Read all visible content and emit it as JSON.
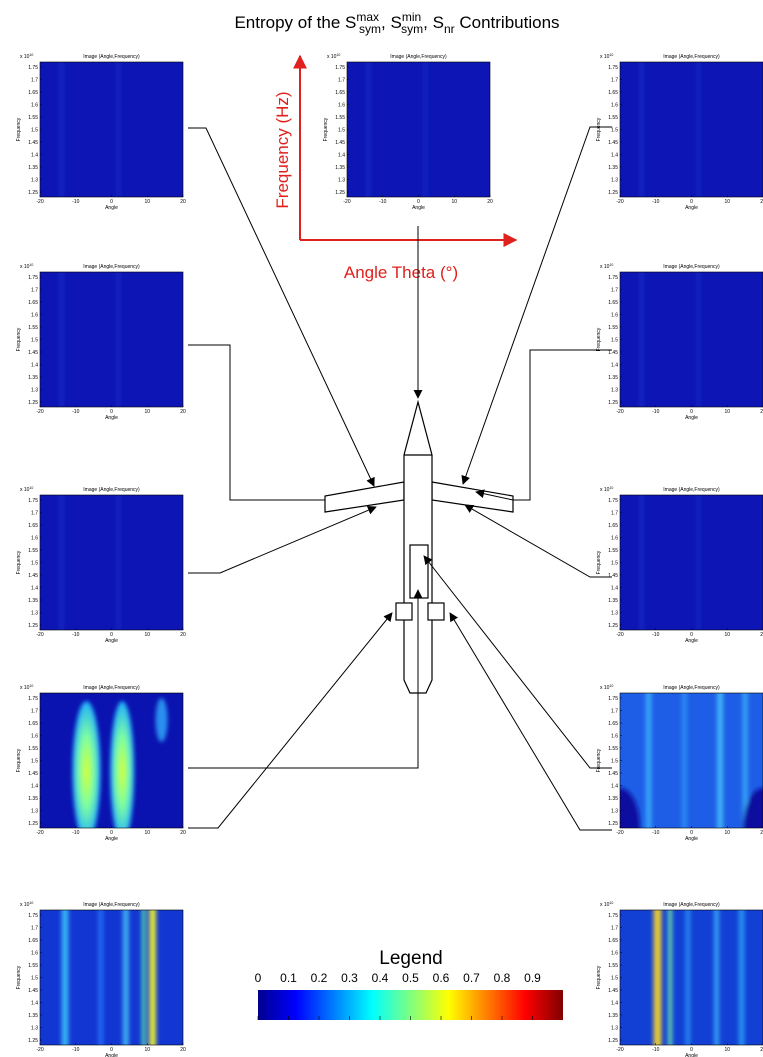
{
  "title": [
    "Entropy of the S",
    "max",
    "sym",
    ", S",
    "min",
    "sym",
    ", S",
    "nr",
    " Contributions"
  ],
  "panel_axes": {
    "title": "Image (Angle,Frequency)",
    "xlabel": "Angle",
    "ylabel": "Frequency",
    "multiplier": "x 10",
    "exponent": "10",
    "xlim": [
      -20,
      20
    ],
    "xticks": [
      -20,
      -10,
      0,
      10,
      20
    ],
    "ylim": [
      1.23,
      1.77
    ],
    "yticks": [
      1.25,
      1.3,
      1.35,
      1.4,
      1.45,
      1.5,
      1.55,
      1.6,
      1.65,
      1.7,
      1.75
    ]
  },
  "annotations": {
    "frequency_axis": "Frequency (Hz)",
    "angle_axis": "Angle Theta (°)"
  },
  "legend": {
    "title": "Legend",
    "lim": [
      0,
      1
    ],
    "ticks": [
      0,
      0.1,
      0.2,
      0.3,
      0.4,
      0.5,
      0.6,
      0.7,
      0.8,
      0.9
    ]
  }
}
